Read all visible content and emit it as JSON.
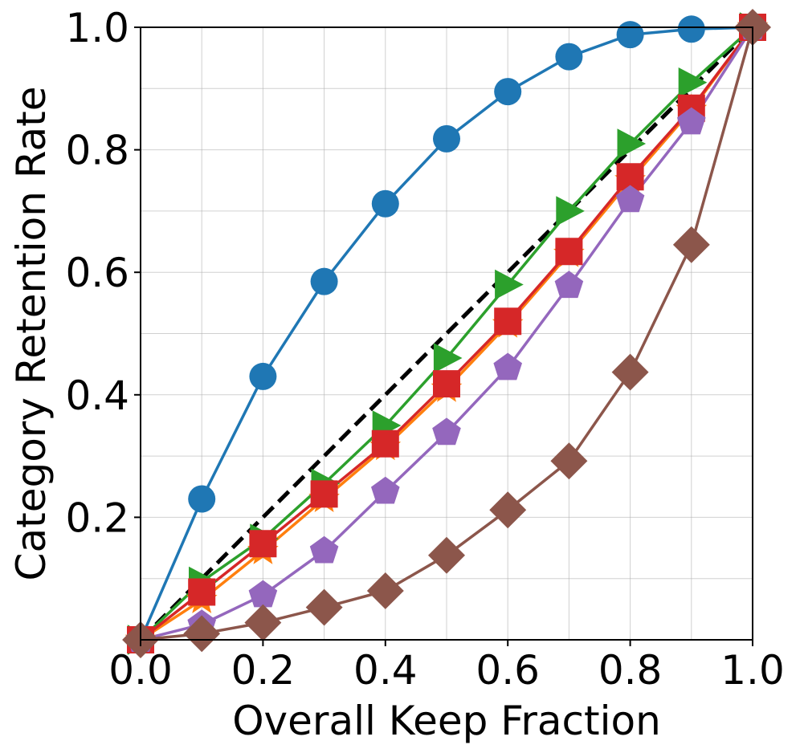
{
  "chart_data": {
    "type": "line",
    "title": "",
    "xlabel": "Overall Keep Fraction",
    "ylabel": "Category Retention Rate",
    "xlim": [
      0,
      1
    ],
    "ylim": [
      0,
      1
    ],
    "grid": true,
    "x_ticks": [
      0.0,
      0.2,
      0.4,
      0.6,
      0.8,
      1.0
    ],
    "y_ticks": [
      0.2,
      0.4,
      0.6,
      0.8,
      1.0
    ],
    "x_tick_labels": [
      "0.0",
      "0.2",
      "0.4",
      "0.6",
      "0.8",
      "1.0"
    ],
    "y_tick_labels": [
      "0.2",
      "0.4",
      "0.6",
      "0.8",
      "1.0"
    ],
    "x_minor_grid": [
      0.1,
      0.3,
      0.5,
      0.7,
      0.9
    ],
    "y_minor_grid": [
      0.1,
      0.3,
      0.5,
      0.7,
      0.9
    ],
    "x": [
      0.0,
      0.1,
      0.2,
      0.3,
      0.4,
      0.5,
      0.6,
      0.7,
      0.8,
      0.9,
      1.0
    ],
    "reference_line": {
      "x": [
        0,
        1
      ],
      "y": [
        0,
        1
      ],
      "color": "#000000",
      "style": "dashed"
    },
    "series": [
      {
        "name": "blue",
        "color": "#1f77b4",
        "marker": "circle",
        "values": [
          0.0,
          0.23,
          0.43,
          0.585,
          0.712,
          0.818,
          0.895,
          0.952,
          0.988,
          0.997,
          1.0
        ]
      },
      {
        "name": "orange",
        "color": "#ff7f0e",
        "marker": "star",
        "values": [
          0.0,
          0.065,
          0.145,
          0.23,
          0.315,
          0.41,
          0.515,
          0.63,
          0.75,
          0.865,
          1.0
        ]
      },
      {
        "name": "green",
        "color": "#2ca02c",
        "marker": "triangle-right",
        "values": [
          0.0,
          0.095,
          0.165,
          0.255,
          0.35,
          0.46,
          0.58,
          0.7,
          0.81,
          0.91,
          1.0
        ]
      },
      {
        "name": "red",
        "color": "#d62728",
        "marker": "square",
        "values": [
          0.0,
          0.078,
          0.157,
          0.238,
          0.32,
          0.418,
          0.52,
          0.634,
          0.756,
          0.868,
          1.0
        ]
      },
      {
        "name": "purple",
        "color": "#9467bd",
        "marker": "pentagon",
        "values": [
          0.0,
          0.025,
          0.073,
          0.145,
          0.242,
          0.338,
          0.444,
          0.578,
          0.718,
          0.845,
          1.0
        ]
      },
      {
        "name": "brown",
        "color": "#8c564b",
        "marker": "diamond",
        "values": [
          0.0,
          0.01,
          0.028,
          0.053,
          0.08,
          0.138,
          0.212,
          0.292,
          0.437,
          0.645,
          1.0
        ]
      }
    ]
  }
}
